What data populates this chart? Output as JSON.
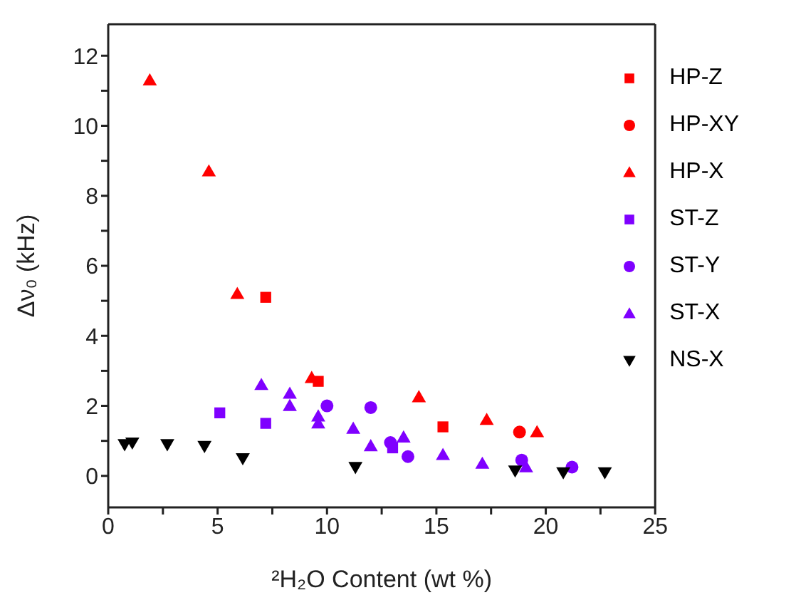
{
  "chart_data": {
    "type": "scatter",
    "xlabel": "²H₂O Content (wt %)",
    "ylabel": "Δν₀ (kHz)",
    "xlim": [
      0,
      25
    ],
    "ylim": [
      -0.9,
      12.9
    ],
    "xticks": [
      0,
      {
        "value": 2.5,
        "label": null
      },
      5,
      {
        "value": 7.5,
        "label": null
      },
      10,
      {
        "value": 12.5,
        "label": null
      },
      15,
      {
        "value": 17.5,
        "label": null
      },
      20,
      {
        "value": 22.5,
        "label": null
      },
      25
    ],
    "yticks": [
      0,
      {
        "value": 1,
        "label": null
      },
      2,
      {
        "value": 3,
        "label": null
      },
      4,
      {
        "value": 5,
        "label": null
      },
      6,
      {
        "value": 7,
        "label": null
      },
      8,
      {
        "value": 9,
        "label": null
      },
      10,
      {
        "value": 11,
        "label": null
      },
      12
    ],
    "grid": false,
    "legend": "top right",
    "series": [
      {
        "name": "HP-Z",
        "color": "#ff0000",
        "marker": "square",
        "x": [
          7.2,
          9.6,
          15.3
        ],
        "values": [
          5.1,
          2.7,
          1.4
        ]
      },
      {
        "name": "HP-XY",
        "color": "#ff0000",
        "marker": "circle",
        "x": [
          18.8
        ],
        "values": [
          1.25
        ]
      },
      {
        "name": "HP-X",
        "color": "#ff0000",
        "marker": "triangle",
        "x": [
          1.9,
          4.6,
          5.9,
          9.3,
          14.2,
          17.3,
          19.6
        ],
        "values": [
          11.3,
          8.7,
          5.2,
          2.8,
          2.25,
          1.6,
          1.25
        ]
      },
      {
        "name": "ST-Z",
        "color": "#7f00ff",
        "marker": "square",
        "x": [
          5.1,
          7.2,
          13.0
        ],
        "values": [
          1.8,
          1.5,
          0.8
        ]
      },
      {
        "name": "ST-Y",
        "color": "#7f00ff",
        "marker": "circle",
        "x": [
          10.0,
          12.0,
          12.9,
          13.7,
          18.9,
          21.2
        ],
        "values": [
          2.0,
          1.95,
          0.95,
          0.55,
          0.45,
          0.25
        ]
      },
      {
        "name": "ST-X",
        "color": "#7f00ff",
        "marker": "triangle",
        "x": [
          7.0,
          8.3,
          8.3,
          9.6,
          9.6,
          11.2,
          12.0,
          13.5,
          15.3,
          17.1,
          19.1
        ],
        "values": [
          2.6,
          2.35,
          2.0,
          1.7,
          1.5,
          1.35,
          0.85,
          1.1,
          0.6,
          0.35,
          0.25
        ]
      },
      {
        "name": "NS-X",
        "color": "#000000",
        "marker": "triangle-down",
        "x": [
          0.75,
          1.1,
          2.7,
          4.4,
          6.15,
          11.3,
          18.6,
          20.8,
          22.7
        ],
        "values": [
          0.9,
          0.95,
          0.9,
          0.85,
          0.5,
          0.25,
          0.15,
          0.1,
          0.1
        ]
      }
    ]
  }
}
